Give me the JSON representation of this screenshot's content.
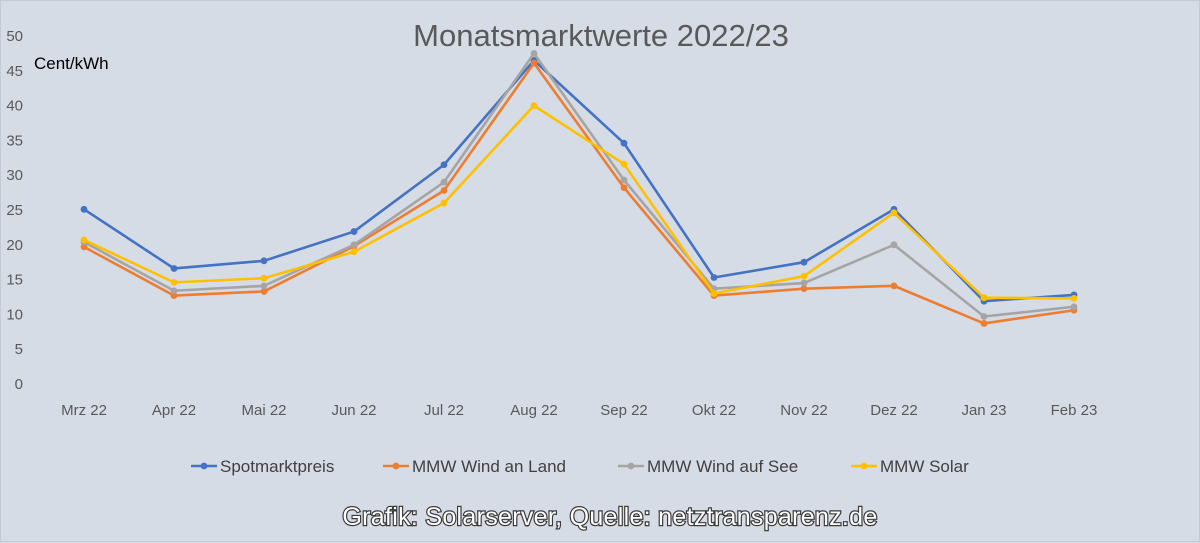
{
  "chart_data": {
    "type": "line",
    "title": "Monatsmarktwerte 2022/23",
    "ylabel": "Cent/kWh",
    "xlabel": "",
    "ylim": [
      0,
      50
    ],
    "yticks": [
      0,
      5,
      10,
      15,
      20,
      25,
      30,
      35,
      40,
      45,
      50
    ],
    "grid": false,
    "legend_position": "bottom",
    "categories": [
      "Mrz 22",
      "Apr 22",
      "Mai 22",
      "Jun 22",
      "Jul 22",
      "Aug 22",
      "Sep 22",
      "Okt 22",
      "Nov 22",
      "Dez 22",
      "Jan 23",
      "Feb 23"
    ],
    "series": [
      {
        "name": "Spotmarktpreis",
        "color": "#4472c4",
        "values": [
          25.1,
          16.6,
          17.7,
          21.9,
          31.5,
          46.5,
          34.6,
          15.3,
          17.5,
          25.1,
          11.9,
          12.8
        ]
      },
      {
        "name": "MMW Wind an Land",
        "color": "#ed7d31",
        "values": [
          19.7,
          12.7,
          13.3,
          19.8,
          27.8,
          46.1,
          28.2,
          12.7,
          13.7,
          14.1,
          8.7,
          10.6
        ]
      },
      {
        "name": "MMW Wind auf See",
        "color": "#a5a5a5",
        "values": [
          20.4,
          13.4,
          14.1,
          20.0,
          29.0,
          47.5,
          29.3,
          13.7,
          14.5,
          20.0,
          9.7,
          11.1
        ]
      },
      {
        "name": "MMW Solar",
        "color": "#ffc000",
        "values": [
          20.7,
          14.6,
          15.2,
          19.0,
          26.0,
          40.0,
          31.6,
          13.0,
          15.5,
          24.6,
          12.4,
          12.3
        ]
      }
    ]
  },
  "credit": "Grafik: Solarserver, Quelle: netztransparenz.de"
}
